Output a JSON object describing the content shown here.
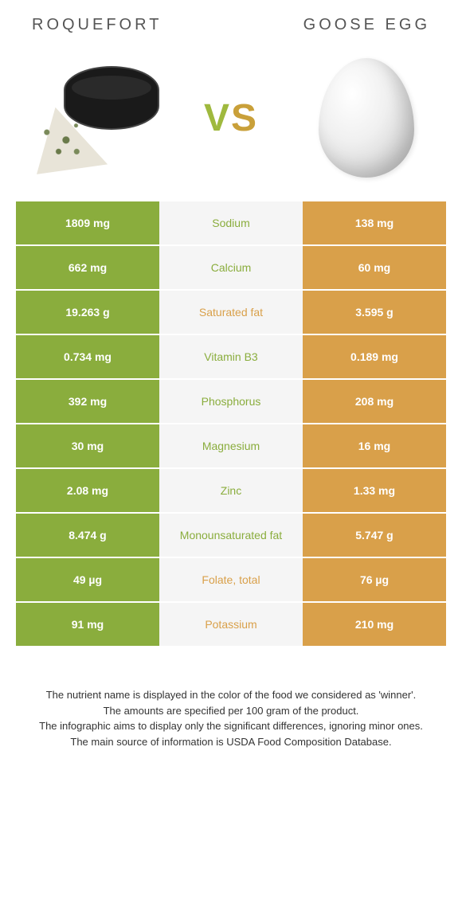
{
  "colors": {
    "left_food": "#8aad3d",
    "right_food": "#d9a04a",
    "mid_bg": "#f5f5f5",
    "value_text": "#ffffff"
  },
  "left_food": {
    "name": "Roquefort"
  },
  "right_food": {
    "name": "Goose egg"
  },
  "vs_label": "VS",
  "rows": [
    {
      "left": "1809 mg",
      "label": "Sodium",
      "right": "138 mg",
      "winner": "left"
    },
    {
      "left": "662 mg",
      "label": "Calcium",
      "right": "60 mg",
      "winner": "left"
    },
    {
      "left": "19.263 g",
      "label": "Saturated fat",
      "right": "3.595 g",
      "winner": "right"
    },
    {
      "left": "0.734 mg",
      "label": "Vitamin B3",
      "right": "0.189 mg",
      "winner": "left"
    },
    {
      "left": "392 mg",
      "label": "Phosphorus",
      "right": "208 mg",
      "winner": "left"
    },
    {
      "left": "30 mg",
      "label": "Magnesium",
      "right": "16 mg",
      "winner": "left"
    },
    {
      "left": "2.08 mg",
      "label": "Zinc",
      "right": "1.33 mg",
      "winner": "left"
    },
    {
      "left": "8.474 g",
      "label": "Monounsaturated fat",
      "right": "5.747 g",
      "winner": "left"
    },
    {
      "left": "49 µg",
      "label": "Folate, total",
      "right": "76 µg",
      "winner": "right"
    },
    {
      "left": "91 mg",
      "label": "Potassium",
      "right": "210 mg",
      "winner": "right"
    }
  ],
  "footer": {
    "line1": "The nutrient name is displayed in the color of the food we considered as 'winner'.",
    "line2": "The amounts are specified per 100 gram of the product.",
    "line3": "The infographic aims to display only the significant differences, ignoring minor ones.",
    "line4": "The main source of information is USDA Food Composition Database."
  }
}
